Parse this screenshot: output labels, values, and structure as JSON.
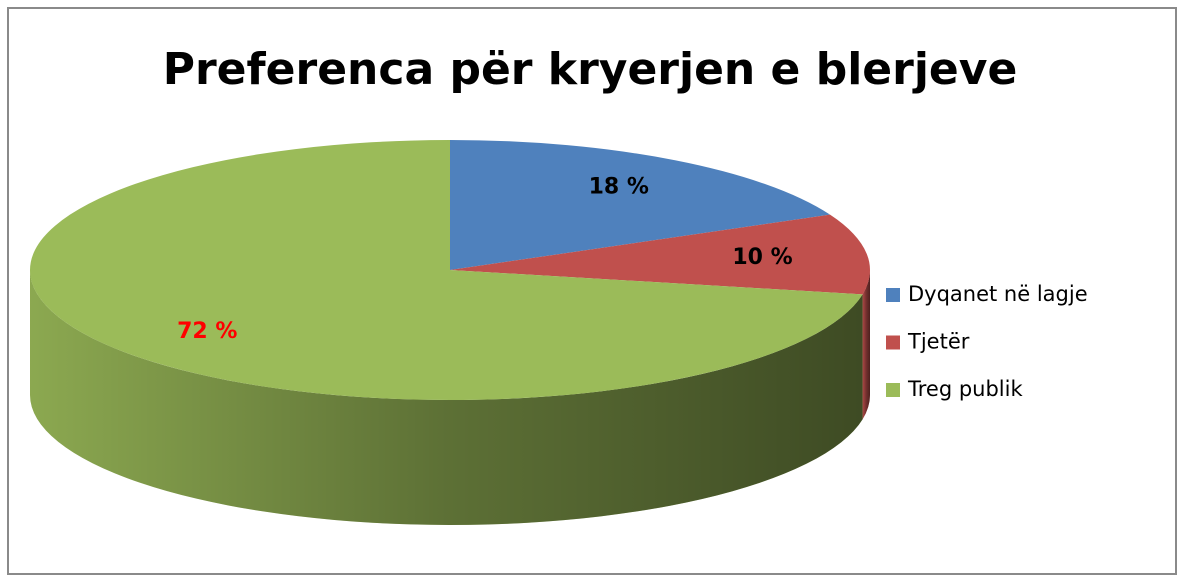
{
  "chart_data": {
    "type": "pie3d",
    "title": "Preferenca për kryerjen e blerjeve",
    "categories": [
      "Dyqanet në lagje",
      "Tjetër",
      "Treg publik"
    ],
    "values": [
      18,
      10,
      72
    ],
    "value_labels": [
      "18 %",
      "10 %",
      "72 %"
    ],
    "colors": [
      "#4f81bd",
      "#c0504d",
      "#9bbb59"
    ],
    "label_colors": [
      "#000000",
      "#000000",
      "#ff0000"
    ],
    "legend": "right"
  }
}
